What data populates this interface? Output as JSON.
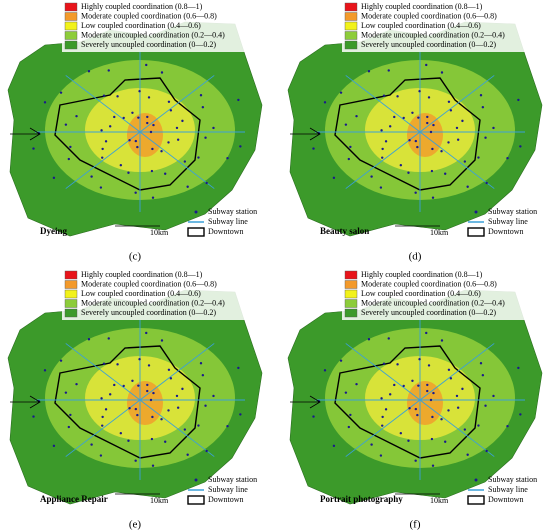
{
  "panels": [
    {
      "label": "(c)",
      "title": "Dyeing",
      "scale": "10km",
      "legend": [
        {
          "text": "Highly coupled coordination (0.8—1)",
          "color": "#e8141b"
        },
        {
          "text": "Moderate coupled coordination (0.6—0.8)",
          "color": "#f39a2b"
        },
        {
          "text": "Low coupled coordination (0.4—0.6)",
          "color": "#f2f21a"
        },
        {
          "text": "Moderate uncoupled coordination (0.2—0.4)",
          "color": "#8dcc3a"
        },
        {
          "text": "Severely uncoupled coordination (0—0.2)",
          "color": "#3c9a2a"
        }
      ],
      "map_legend": [
        "Subway station",
        "Subway line",
        "Downtown"
      ]
    },
    {
      "label": "(d)",
      "title": "Beauty salon",
      "scale": "10km",
      "legend": [
        {
          "text": "Highly coupled coordination (0.8—1)",
          "color": "#e8141b"
        },
        {
          "text": "Moderate coupled coordination (0.6—0.8)",
          "color": "#f39a2b"
        },
        {
          "text": "Low coupled coordination (0.4—0.6)",
          "color": "#f2f21a"
        },
        {
          "text": "Moderate uncoupled coordination (0.2—0.4)",
          "color": "#8dcc3a"
        },
        {
          "text": "Severely uncoupled coordination (0—0.2)",
          "color": "#3c9a2a"
        }
      ],
      "map_legend": [
        "Subway station",
        "Subway line",
        "Downtown"
      ]
    },
    {
      "label": "(e)",
      "title": "Appliance Repair",
      "scale": "10km",
      "legend": [
        {
          "text": "Highly coupled coordination (0.8—1)",
          "color": "#e8141b"
        },
        {
          "text": "Moderate coupled coordination (0.6—0.8)",
          "color": "#f39a2b"
        },
        {
          "text": "Low coupled coordination (0.4—0.6)",
          "color": "#f2f21a"
        },
        {
          "text": "Moderate uncoupled coordination (0.2—0.4)",
          "color": "#8dcc3a"
        },
        {
          "text": "Severely uncoupled coordination (0—0.2)",
          "color": "#3c9a2a"
        }
      ],
      "map_legend": [
        "Subway station",
        "Subway line",
        "Downtown"
      ]
    },
    {
      "label": "(f)",
      "title": "Portrait photography",
      "scale": "10km",
      "legend": [
        {
          "text": "Highly coupled coordination (0.8—1)",
          "color": "#e8141b"
        },
        {
          "text": "Moderate coupled coordination (0.6—0.8)",
          "color": "#f39a2b"
        },
        {
          "text": "Low coupled coordination (0.4—0.6)",
          "color": "#f2f21a"
        },
        {
          "text": "Moderate uncoupled coordination (0.2—0.4)",
          "color": "#8dcc3a"
        },
        {
          "text": "Severely uncoupled coordination (0—0.2)",
          "color": "#3c9a2a"
        }
      ],
      "map_legend": [
        "Subway station",
        "Subway line",
        "Downtown"
      ]
    }
  ]
}
